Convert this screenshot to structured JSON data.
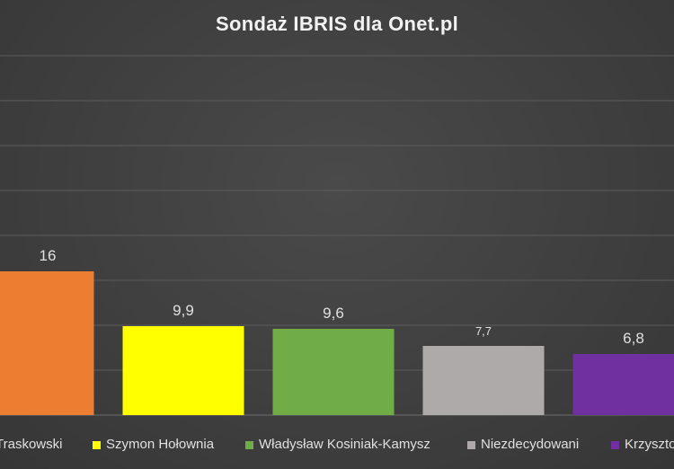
{
  "chart_data": {
    "type": "bar",
    "title": "Sondaż IBRIS dla Onet.pl",
    "categories": [
      "Traskowski",
      "Szymon Hołownia",
      "Władysław Kosiniak-Kamysz",
      "Niezdecydowani",
      "Krzyszto"
    ],
    "values": [
      16,
      9.9,
      9.6,
      7.7,
      6.8
    ],
    "data_labels": [
      "16",
      "9,9",
      "9,6",
      "7,7",
      "6,8"
    ],
    "colors": [
      "#ED7D31",
      "#FFFF00",
      "#70AD47",
      "#AEAAAA",
      "#7030A0"
    ],
    "ylim": [
      0,
      40
    ],
    "grid": true,
    "legend_position": "bottom",
    "xlabel": "",
    "ylabel": ""
  }
}
